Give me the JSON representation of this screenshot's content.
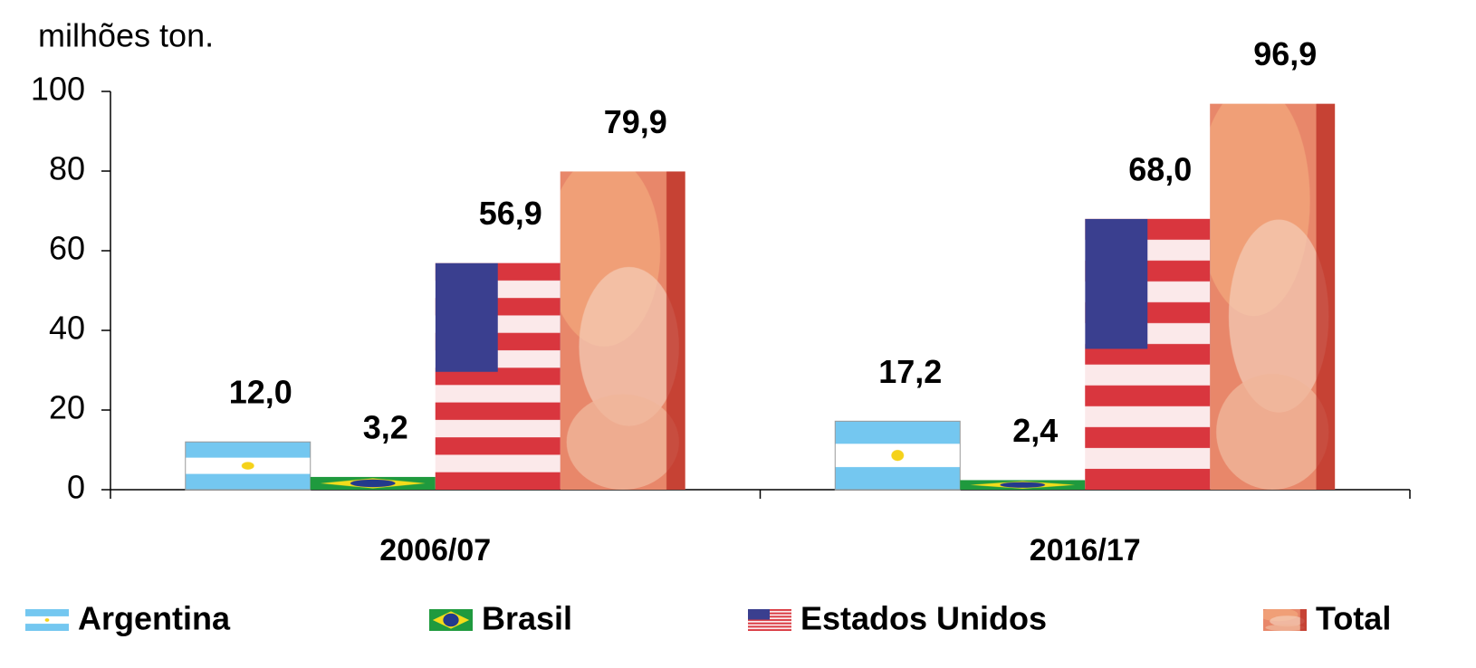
{
  "chart_data": {
    "type": "bar",
    "ylabel": "milhões ton.",
    "categories": [
      "2006/07",
      "2016/17"
    ],
    "ylim": [
      0,
      100
    ],
    "yticks": [
      0,
      20,
      40,
      60,
      80,
      100
    ],
    "series": [
      {
        "name": "Argentina",
        "color": "#74c7f0",
        "values": [
          12.0,
          17.2
        ],
        "value_labels": [
          "12,0",
          "17,2"
        ]
      },
      {
        "name": "Brasil",
        "color": "#1f9a3e",
        "values": [
          3.2,
          2.4
        ],
        "value_labels": [
          "3,2",
          "2,4"
        ]
      },
      {
        "name": "Estados Unidos",
        "color": "#d9363e",
        "values": [
          56.9,
          68.0
        ],
        "value_labels": [
          "56,9",
          "68,0"
        ]
      },
      {
        "name": "Total",
        "color": "#e8876a",
        "values": [
          79.9,
          96.9
        ],
        "value_labels": [
          "79,9",
          "96,9"
        ]
      }
    ]
  }
}
